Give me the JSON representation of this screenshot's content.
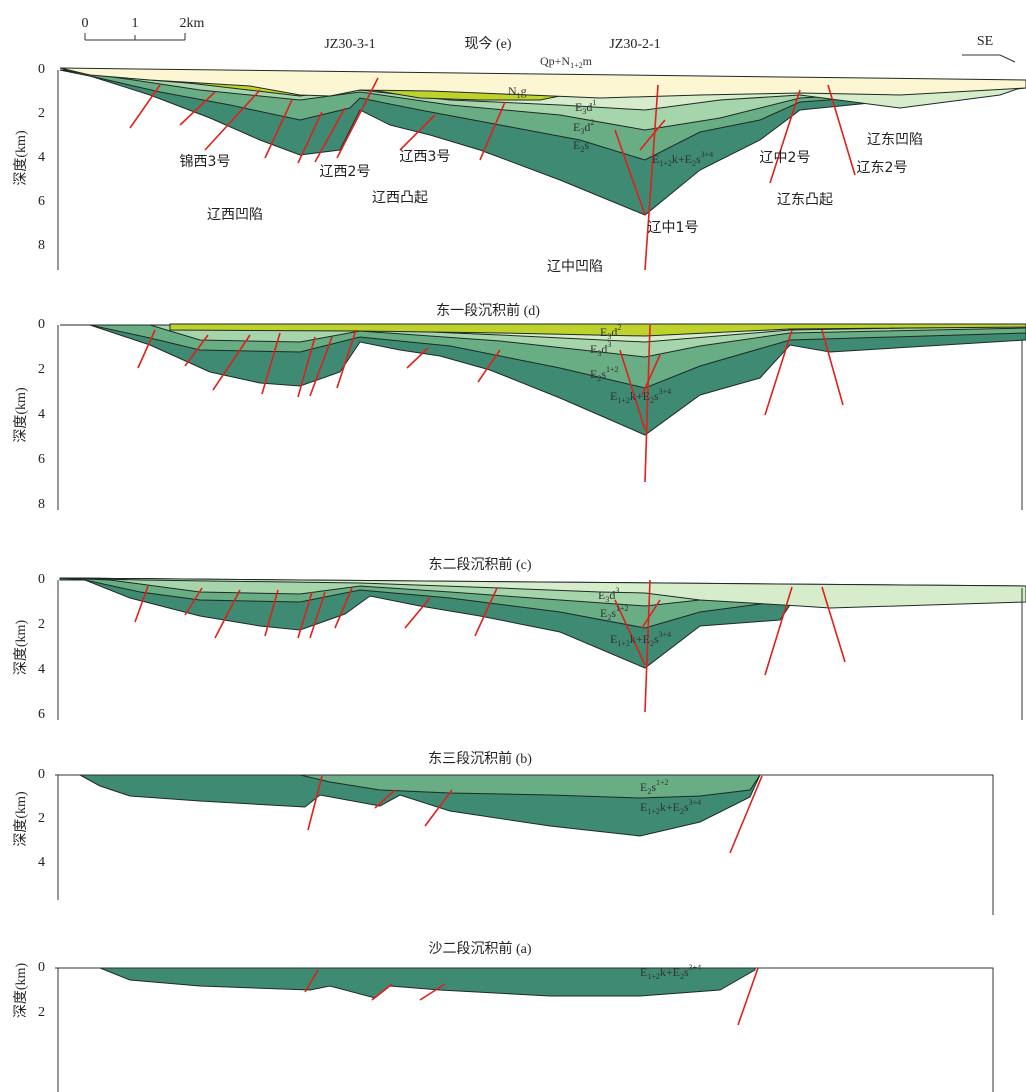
{
  "scale": [
    "0",
    "1",
    "2km"
  ],
  "panels": [
    {
      "title": "现今 (e)",
      "wells": [
        "JZ30-3-1",
        "JZ30-2-1"
      ],
      "direction": "SE",
      "depth_label": "深度(km)",
      "depth_ticks": [
        "0",
        "2",
        "4",
        "6",
        "8"
      ],
      "layers": [
        [
          "Qp+N",
          {
            "sub": "1+2"
          },
          "m"
        ],
        [
          "N",
          {
            "sub": "1"
          },
          "g"
        ],
        [
          "E",
          {
            "sub": "3"
          },
          "d",
          {
            "sup": "1"
          }
        ],
        [
          "E",
          {
            "sub": "3"
          },
          "d",
          {
            "sup": "2"
          }
        ],
        [
          "E",
          {
            "sub": "2"
          },
          "s"
        ],
        [
          "E",
          {
            "sub": "1+2"
          },
          "k+E",
          {
            "sub": "2"
          },
          "s",
          {
            "sup": "3+4"
          }
        ]
      ],
      "structures": [
        "锦西3号",
        "辽西2号",
        "辽西3号",
        "辽西凸起",
        "辽西凹陷",
        "辽中1号",
        "辽中凹陷",
        "辽中2号",
        "辽东凸起",
        "辽东凹陷",
        "辽东2号"
      ]
    },
    {
      "title": "东一段沉积前 (d)",
      "depth_label": "深度(km)",
      "depth_ticks": [
        "0",
        "2",
        "4",
        "6",
        "8"
      ],
      "layers": [
        [
          "E",
          {
            "sub": "3"
          },
          "d",
          {
            "sup": "2"
          }
        ],
        [
          "E",
          {
            "sub": "3"
          },
          "d",
          {
            "sup": "3"
          }
        ],
        [
          "E",
          {
            "sub": "2"
          },
          "s",
          {
            "sup": "1+2"
          }
        ],
        [
          "E",
          {
            "sub": "1+2"
          },
          "k+E",
          {
            "sub": "2"
          },
          "s",
          {
            "sup": "3+4"
          }
        ]
      ]
    },
    {
      "title": "东二段沉积前 (c)",
      "depth_label": "深度(km)",
      "depth_ticks": [
        "0",
        "2",
        "4",
        "6"
      ],
      "layers": [
        [
          "E",
          {
            "sub": "3"
          },
          "d",
          {
            "sup": "3"
          }
        ],
        [
          "E",
          {
            "sub": "2"
          },
          "s",
          {
            "sup": "1+2"
          }
        ],
        [
          "E",
          {
            "sub": "1+2"
          },
          "k+E",
          {
            "sub": "2"
          },
          "s",
          {
            "sup": "3+4"
          }
        ]
      ]
    },
    {
      "title": "东三段沉积前 (b)",
      "depth_label": "深度(km)",
      "depth_ticks": [
        "0",
        "2",
        "4"
      ],
      "layers": [
        [
          "E",
          {
            "sub": "2"
          },
          "s",
          {
            "sup": "1+2"
          }
        ],
        [
          "E",
          {
            "sub": "1+2"
          },
          "k+E",
          {
            "sub": "2"
          },
          "s",
          {
            "sup": "3+4"
          }
        ]
      ]
    },
    {
      "title": "沙二段沉积前 (a)",
      "depth_label": "深度(km)",
      "depth_ticks": [
        "0",
        "2"
      ],
      "layers": [
        [
          "E",
          {
            "sub": "1+2"
          },
          "k+E",
          {
            "sub": "2"
          },
          "s",
          {
            "sup": "3+4"
          }
        ]
      ]
    }
  ]
}
